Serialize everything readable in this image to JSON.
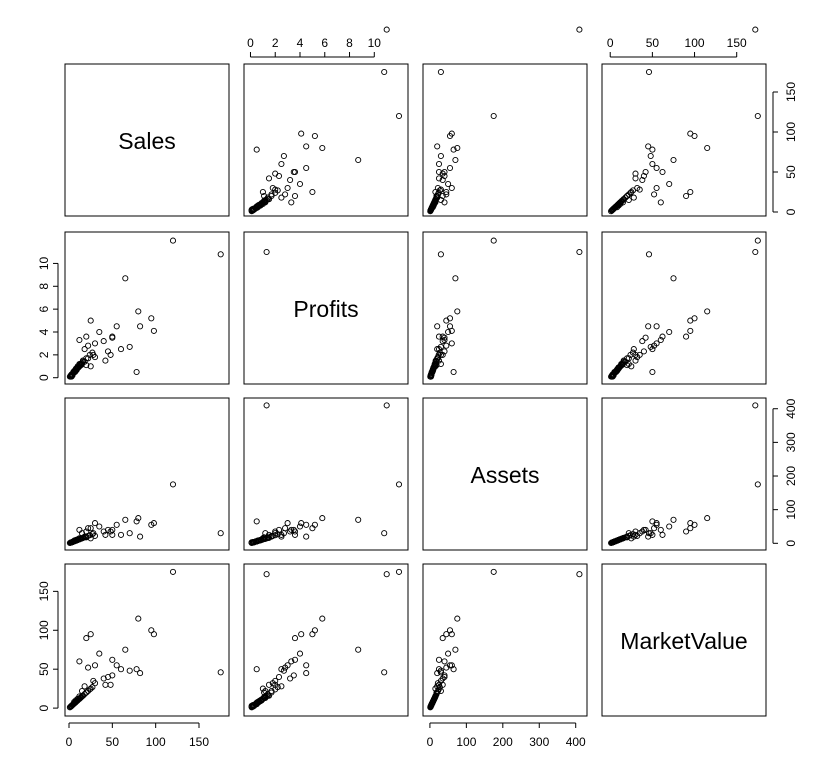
{
  "chart_data": {
    "type": "scatter",
    "title": "",
    "layout": "scatterplot-matrix",
    "variables": [
      "Sales",
      "Profits",
      "Assets",
      "MarketValue"
    ],
    "ranges": {
      "Sales": [
        0,
        180
      ],
      "Profits": [
        -0.2,
        12.4
      ],
      "Assets": [
        -8,
        420
      ],
      "MarketValue": [
        -5,
        180
      ]
    },
    "ticks": {
      "Sales": [
        0,
        50,
        100,
        150
      ],
      "Profits": [
        0,
        2,
        4,
        6,
        8,
        10
      ],
      "Assets": [
        0,
        100,
        200,
        300,
        400
      ],
      "MarketValue": [
        0,
        50,
        100,
        150
      ]
    },
    "tick_labels": {
      "Sales": [
        "0",
        "50",
        "100",
        "150"
      ],
      "Profits": [
        "0",
        "2",
        "4",
        "6",
        "8",
        "10"
      ],
      "Assets": [
        "0",
        "100",
        "200",
        "300",
        "400"
      ],
      "MarketValue": [
        "0",
        "50",
        "100",
        "150"
      ]
    },
    "axis_sides": {
      "bottom": [
        [
          "Sales",
          "Sales"
        ],
        [
          "Assets",
          "Assets"
        ]
      ],
      "top": [
        [
          "Profits",
          "Profits"
        ],
        [
          "MarketValue",
          "MarketValue"
        ]
      ],
      "left": [
        [
          "Profits",
          "Profits"
        ],
        [
          "MarketValue",
          "MarketValue"
        ]
      ],
      "right": [
        [
          "Sales",
          "Sales"
        ],
        [
          "Assets",
          "Assets"
        ]
      ]
    },
    "grid": false,
    "legend": "none",
    "data": {
      "Sales": [
        175,
        120,
        228,
        80,
        65,
        55,
        50,
        25,
        20,
        35,
        12,
        30,
        22,
        60,
        70,
        50,
        95,
        98,
        78,
        82,
        45,
        40,
        28,
        42,
        18,
        25,
        30,
        15,
        48,
        20,
        5,
        6,
        8,
        10,
        12,
        4,
        3,
        7,
        9,
        11,
        14,
        2,
        5,
        8,
        3,
        6,
        10,
        13,
        16,
        4,
        2,
        7,
        9,
        5,
        12,
        15,
        18,
        22,
        8,
        6,
        4,
        3,
        11,
        14,
        1,
        9,
        7,
        5,
        10,
        13,
        3,
        6,
        8,
        2,
        4,
        12,
        16,
        20,
        24,
        27
      ],
      "Profits": [
        10.8,
        12.0,
        11.0,
        5.8,
        8.7,
        4.5,
        3.5,
        5.0,
        3.6,
        4.0,
        3.3,
        3.0,
        2.8,
        2.5,
        2.7,
        3.6,
        5.2,
        4.1,
        0.5,
        4.5,
        2.3,
        3.2,
        2.0,
        1.5,
        2.5,
        1.0,
        1.8,
        1.2,
        2.0,
        1.1,
        0.4,
        0.6,
        0.8,
        1.0,
        1.2,
        0.3,
        0.1,
        0.5,
        0.7,
        0.9,
        1.1,
        0.2,
        0.5,
        0.7,
        0.3,
        0.5,
        0.9,
        1.2,
        1.5,
        0.2,
        0.1,
        0.6,
        0.8,
        0.4,
        1.0,
        1.3,
        1.4,
        1.7,
        0.6,
        0.5,
        0.3,
        0.2,
        0.9,
        1.2,
        0.1,
        0.8,
        0.6,
        0.4,
        0.9,
        1.1,
        0.2,
        0.5,
        0.7,
        0.1,
        0.3,
        1.0,
        1.4,
        1.7,
        2.0,
        2.2
      ],
      "Assets": [
        30,
        175,
        410,
        75,
        70,
        55,
        40,
        45,
        35,
        50,
        40,
        60,
        45,
        25,
        30,
        25,
        55,
        60,
        65,
        20,
        40,
        35,
        30,
        25,
        20,
        15,
        22,
        30,
        35,
        18,
        5,
        8,
        10,
        12,
        15,
        4,
        3,
        7,
        9,
        11,
        14,
        2,
        5,
        8,
        3,
        6,
        10,
        13,
        16,
        4,
        2,
        7,
        9,
        5,
        12,
        15,
        18,
        22,
        8,
        6,
        4,
        3,
        11,
        14,
        1,
        9,
        7,
        5,
        10,
        13,
        3,
        6,
        8,
        2,
        4,
        12,
        16,
        20,
        24,
        27
      ],
      "MarketValue": [
        46,
        175,
        172,
        115,
        75,
        55,
        42,
        95,
        90,
        70,
        60,
        55,
        52,
        50,
        48,
        62,
        100,
        95,
        50,
        45,
        40,
        38,
        35,
        30,
        28,
        25,
        32,
        22,
        30,
        20,
        5,
        8,
        10,
        12,
        15,
        4,
        3,
        7,
        9,
        11,
        14,
        2,
        5,
        8,
        3,
        6,
        10,
        13,
        16,
        4,
        2,
        7,
        9,
        5,
        12,
        15,
        18,
        22,
        8,
        6,
        4,
        3,
        11,
        14,
        1,
        9,
        7,
        5,
        10,
        13,
        3,
        6,
        8,
        2,
        4,
        12,
        16,
        20,
        24,
        27
      ]
    }
  }
}
